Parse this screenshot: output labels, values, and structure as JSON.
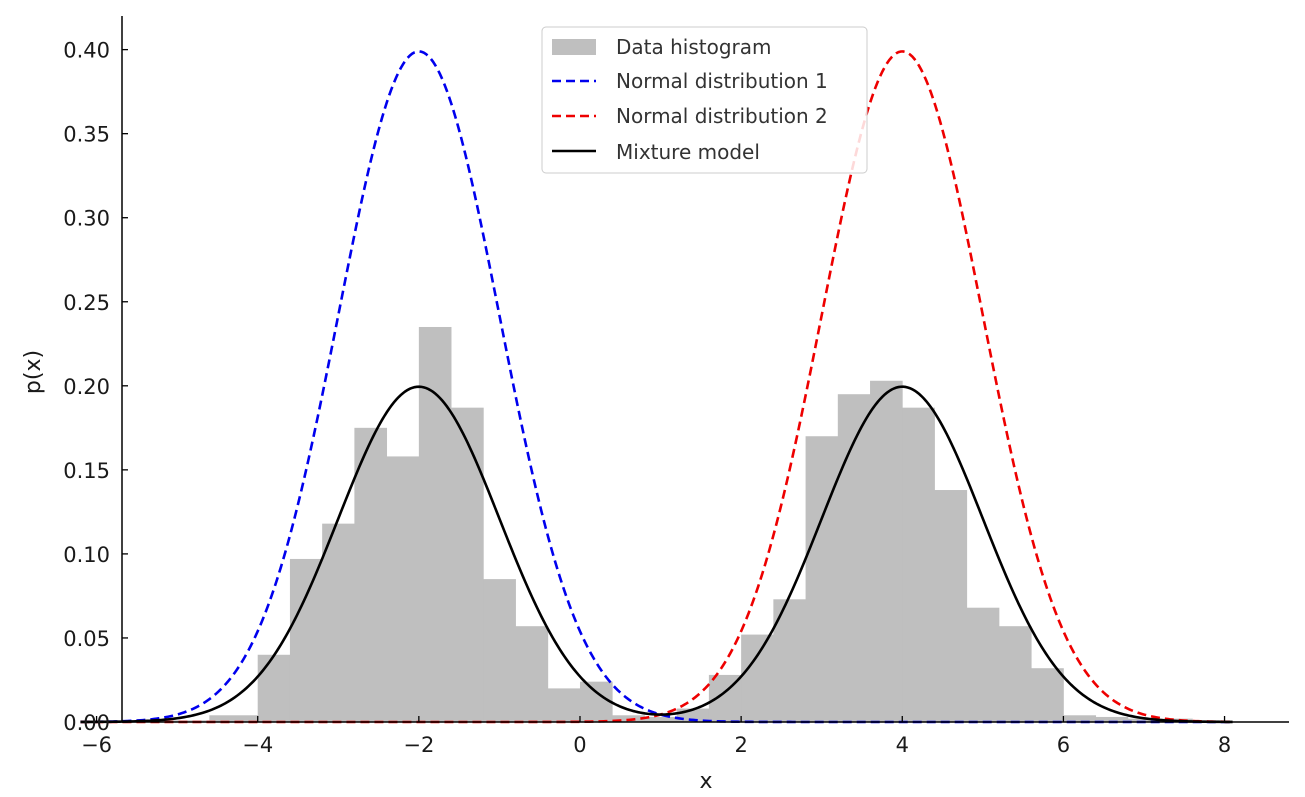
{
  "chart_data": {
    "type": "bar",
    "title": "",
    "xlabel": "x",
    "ylabel": "p(x)",
    "xlim": [
      -7.0,
      8.8
    ],
    "ylim": [
      0.0,
      0.42
    ],
    "xticks": [
      -6,
      -4,
      -2,
      0,
      2,
      4,
      6,
      8
    ],
    "xtick_labels": [
      "−6",
      "−4",
      "−2",
      "0",
      "2",
      "4",
      "6",
      "8"
    ],
    "yticks": [
      0.0,
      0.05,
      0.1,
      0.15,
      0.2,
      0.25,
      0.3,
      0.35,
      0.4
    ],
    "ytick_labels": [
      "0.00",
      "0.05",
      "0.10",
      "0.15",
      "0.20",
      "0.25",
      "0.30",
      "0.35",
      "0.40"
    ],
    "grid": false,
    "legend_position": "top-center",
    "histogram": {
      "name": "Data histogram",
      "color": "#bfbfbf",
      "bin_edges": [
        -6.2,
        -5.8,
        -5.4,
        -5.0,
        -4.6,
        -4.0,
        -3.6,
        -3.2,
        -2.8,
        -2.4,
        -2.0,
        -1.6,
        -1.2,
        -0.8,
        -0.4,
        0.0,
        0.4,
        0.8,
        1.2,
        1.6,
        2.0,
        2.4,
        2.8,
        3.2,
        3.6,
        4.0,
        4.4,
        4.8,
        5.2,
        5.6,
        6.0,
        6.4,
        6.8,
        7.2,
        7.6,
        8.0
      ],
      "values": [
        0.001,
        0.001,
        0.001,
        0.001,
        0.004,
        0.04,
        0.097,
        0.118,
        0.175,
        0.158,
        0.235,
        0.187,
        0.085,
        0.057,
        0.02,
        0.024,
        0.004,
        0.003,
        0.008,
        0.028,
        0.052,
        0.073,
        0.17,
        0.195,
        0.203,
        0.187,
        0.138,
        0.068,
        0.057,
        0.032,
        0.004,
        0.003,
        0.002,
        0.002,
        0.001
      ]
    },
    "series": [
      {
        "name": "Normal distribution 1",
        "kind": "normal_pdf",
        "mean": -2,
        "std": 1,
        "weight": 1.0,
        "color": "#0000ee",
        "style": "dashed"
      },
      {
        "name": "Normal distribution 2",
        "kind": "normal_pdf",
        "mean": 4,
        "std": 1,
        "weight": 1.0,
        "color": "#ee0000",
        "style": "dashed"
      },
      {
        "name": "Mixture model",
        "kind": "mixture",
        "components": [
          {
            "mean": -2,
            "std": 1,
            "weight": 0.5
          },
          {
            "mean": 4,
            "std": 1,
            "weight": 0.5
          }
        ],
        "color": "#000000",
        "style": "solid"
      }
    ],
    "curve_range": [
      -6.2,
      8.1
    ]
  }
}
